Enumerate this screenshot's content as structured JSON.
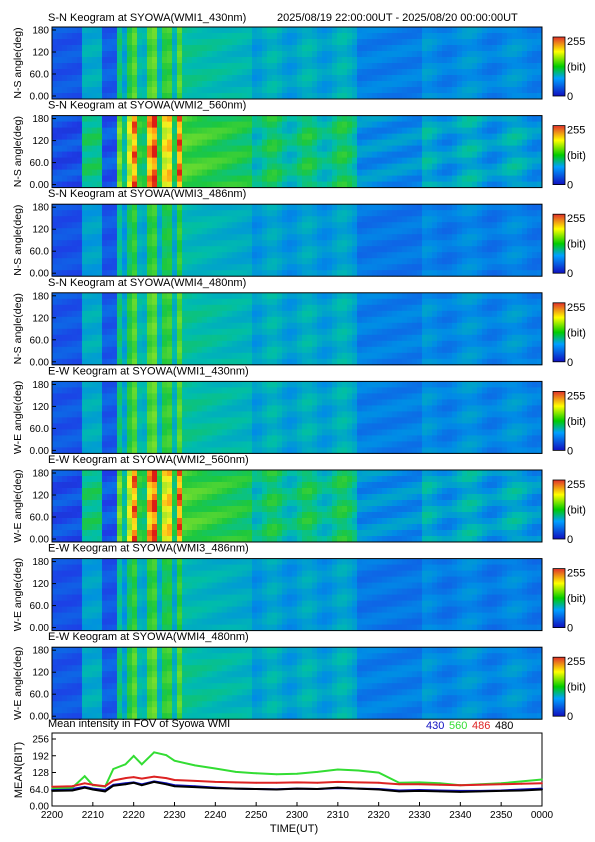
{
  "header": {
    "date_range": "2025/08/19 22:00:00UT - 2025/08/20 00:00:00UT"
  },
  "colorbar": {
    "max_label": "255",
    "unit_label": "(bit)",
    "min_label": "0"
  },
  "colors": {
    "bar_high": "#e0302a",
    "bar_mid": "#ffff00",
    "bar_low": "#00cc00",
    "bar_bottom": "#1010c0",
    "frame": "#000000"
  },
  "keograms": [
    {
      "title": "S-N Keogram at SYOWA(WMI1_430nm)",
      "ylabel": "N-S angle(deg)",
      "yticks": [
        "180",
        "120",
        "60.0",
        "0.00"
      ],
      "channel": "430",
      "intensity_scale": 0.55
    },
    {
      "title": "S-N Keogram at SYOWA(WMI2_560nm)",
      "ylabel": "N-S angle(deg)",
      "yticks": [
        "180",
        "120",
        "60.0",
        "0.00"
      ],
      "channel": "560",
      "intensity_scale": 1.0
    },
    {
      "title": "S-N Keogram at SYOWA(WMI3_486nm)",
      "ylabel": "N-S angle(deg)",
      "yticks": [
        "180",
        "120",
        "60.0",
        "0.00"
      ],
      "channel": "486",
      "intensity_scale": 0.5
    },
    {
      "title": "S-N Keogram at SYOWA(WMI4_480nm)",
      "ylabel": "N-S angle(deg)",
      "yticks": [
        "180",
        "120",
        "60.0",
        "0.00"
      ],
      "channel": "480",
      "intensity_scale": 0.55
    },
    {
      "title": "E-W Keogram at SYOWA(WMI1_430nm)",
      "ylabel": "W-E angle(deg)",
      "yticks": [
        "180",
        "120",
        "60.0",
        "0.00"
      ],
      "channel": "430",
      "intensity_scale": 0.55
    },
    {
      "title": "E-W Keogram at SYOWA(WMI2_560nm)",
      "ylabel": "W-E angle(deg)",
      "yticks": [
        "180",
        "120",
        "60.0",
        "0.00"
      ],
      "channel": "560",
      "intensity_scale": 1.0
    },
    {
      "title": "E-W Keogram at SYOWA(WMI3_486nm)",
      "ylabel": "W-E angle(deg)",
      "yticks": [
        "180",
        "120",
        "60.0",
        "0.00"
      ],
      "channel": "486",
      "intensity_scale": 0.5
    },
    {
      "title": "E-W Keogram at SYOWA(WMI4_480nm)",
      "ylabel": "W-E angle(deg)",
      "yticks": [
        "180",
        "120",
        "60.0",
        "0.00"
      ],
      "channel": "480",
      "intensity_scale": 0.55
    }
  ],
  "chart_data": {
    "type": "line",
    "title": "Mean intensity in FOV of Syowa WMI",
    "xlabel": "TIME(UT)",
    "ylabel": "MEAN(BIT)",
    "xlim": [
      "2200",
      "0000"
    ],
    "ylim": [
      0,
      256
    ],
    "x_ticks": [
      "2200",
      "2210",
      "2220",
      "2230",
      "2240",
      "2250",
      "2300",
      "2310",
      "2320",
      "2330",
      "2340",
      "2350",
      "0000"
    ],
    "y_ticks": [
      "256",
      "192",
      "128",
      "64.0",
      "0.00"
    ],
    "x": [
      "2200",
      "2205",
      "2208",
      "2210",
      "2213",
      "2215",
      "2218",
      "2220",
      "2222",
      "2225",
      "2228",
      "2230",
      "2235",
      "2240",
      "2245",
      "2250",
      "2255",
      "2300",
      "2305",
      "2310",
      "2315",
      "2320",
      "2325",
      "2330",
      "2335",
      "2340",
      "2345",
      "2350",
      "2355",
      "0000"
    ],
    "series": [
      {
        "name": "430",
        "color": "#1010c0",
        "values": [
          44,
          46,
          55,
          48,
          42,
          64,
          70,
          74,
          66,
          78,
          70,
          62,
          58,
          52,
          48,
          46,
          45,
          48,
          46,
          50,
          48,
          46,
          40,
          42,
          40,
          38,
          38,
          40,
          44,
          48
        ]
      },
      {
        "name": "560",
        "color": "#33dd33",
        "values": [
          50,
          52,
          100,
          62,
          56,
          130,
          150,
          185,
          150,
          200,
          188,
          165,
          145,
          132,
          118,
          112,
          108,
          110,
          118,
          128,
          124,
          115,
          72,
          74,
          70,
          62,
          66,
          70,
          78,
          86
        ]
      },
      {
        "name": "486",
        "color": "#dd2222",
        "values": [
          56,
          58,
          70,
          64,
          58,
          82,
          92,
          96,
          90,
          98,
          92,
          84,
          80,
          76,
          74,
          72,
          72,
          74,
          72,
          76,
          74,
          72,
          66,
          66,
          64,
          62,
          64,
          66,
          68,
          70
        ]
      },
      {
        "name": "480",
        "color": "#000000",
        "values": [
          38,
          40,
          52,
          44,
          36,
          60,
          66,
          72,
          62,
          76,
          66,
          58,
          54,
          50,
          48,
          46,
          44,
          48,
          46,
          52,
          48,
          44,
          36,
          38,
          36,
          34,
          36,
          38,
          40,
          44
        ]
      }
    ],
    "legend_position": "top-right",
    "grid": false
  }
}
